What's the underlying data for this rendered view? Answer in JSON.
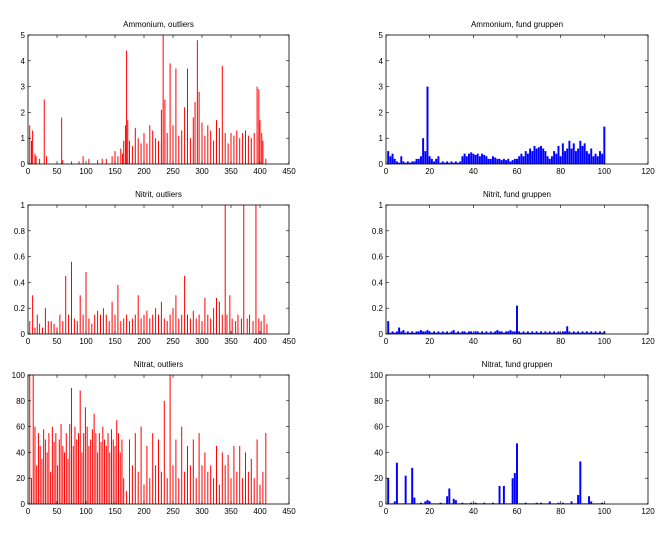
{
  "chart_data": [
    {
      "type": "bar",
      "title": "Ammonium, outliers",
      "xlabel": "",
      "ylabel": "",
      "xlim": [
        0,
        450
      ],
      "ylim": [
        0,
        5
      ],
      "xticks": [
        0,
        50,
        100,
        150,
        200,
        250,
        300,
        350,
        400,
        450
      ],
      "yticks": [
        0,
        1,
        2,
        3,
        4,
        5
      ],
      "color": "#ff0000",
      "style": "spike",
      "x": [
        3,
        6,
        8,
        12,
        14,
        20,
        28,
        32,
        58,
        60,
        75,
        88,
        95,
        105,
        120,
        128,
        135,
        145,
        150,
        155,
        160,
        163,
        165,
        168,
        170,
        172,
        175,
        180,
        185,
        190,
        195,
        200,
        205,
        210,
        215,
        220,
        225,
        230,
        233,
        236,
        240,
        245,
        250,
        255,
        260,
        265,
        270,
        275,
        280,
        285,
        288,
        292,
        295,
        300,
        305,
        310,
        315,
        320,
        325,
        330,
        335,
        340,
        345,
        350,
        355,
        360,
        365,
        370,
        375,
        380,
        385,
        390,
        395,
        398,
        400,
        403,
        405,
        410
      ],
      "values": [
        1.5,
        0.9,
        1.3,
        0.4,
        0.3,
        0.2,
        2.5,
        0.3,
        1.8,
        0.15,
        0.1,
        0.1,
        0.3,
        0.2,
        0.15,
        0.2,
        0.2,
        0.3,
        0.5,
        0.3,
        0.6,
        0.4,
        0.9,
        1.5,
        4.4,
        1.7,
        0.9,
        0.7,
        1.4,
        1.0,
        0.8,
        1.2,
        0.8,
        1.5,
        1.3,
        1.0,
        0.9,
        2.1,
        5.0,
        2.5,
        1.2,
        3.9,
        1.5,
        3.7,
        1.1,
        1.3,
        2.2,
        3.7,
        1.0,
        1.8,
        2.4,
        4.8,
        2.8,
        1.6,
        1.1,
        1.5,
        1.3,
        0.9,
        1.7,
        1.4,
        3.8,
        1.2,
        0.8,
        1.2,
        1.1,
        1.3,
        1.0,
        1.2,
        1.3,
        1.1,
        1.0,
        1.2,
        3.0,
        2.9,
        1.7,
        1.2,
        0.9,
        0.2
      ]
    },
    {
      "type": "bar",
      "title": "Ammonium, fund gruppen",
      "xlabel": "",
      "ylabel": "",
      "xlim": [
        0,
        120
      ],
      "ylim": [
        0,
        5
      ],
      "xticks": [
        0,
        20,
        40,
        60,
        80,
        100,
        120
      ],
      "yticks": [
        0,
        1,
        2,
        3,
        4,
        5
      ],
      "color": "#0000ff",
      "style": "bar",
      "x": [
        1,
        2,
        3,
        4,
        5,
        6,
        7,
        8,
        9,
        10,
        11,
        12,
        13,
        14,
        15,
        16,
        17,
        18,
        19,
        20,
        21,
        22,
        23,
        24,
        25,
        26,
        27,
        28,
        29,
        30,
        31,
        32,
        33,
        34,
        35,
        36,
        37,
        38,
        39,
        40,
        41,
        42,
        43,
        44,
        45,
        46,
        47,
        48,
        49,
        50,
        51,
        52,
        53,
        54,
        55,
        56,
        57,
        58,
        59,
        60,
        61,
        62,
        63,
        64,
        65,
        66,
        67,
        68,
        69,
        70,
        71,
        72,
        73,
        74,
        75,
        76,
        77,
        78,
        79,
        80,
        81,
        82,
        83,
        84,
        85,
        86,
        87,
        88,
        89,
        90,
        91,
        92,
        93,
        94,
        95,
        96,
        97,
        98,
        99,
        100
      ],
      "values": [
        0.5,
        0.3,
        0.4,
        0.2,
        0.1,
        0.05,
        0.3,
        0.1,
        0.05,
        0.1,
        0.05,
        0.1,
        0.1,
        0.2,
        0.2,
        0.3,
        1.0,
        0.5,
        3.0,
        0.3,
        0.2,
        0.1,
        0.2,
        0.3,
        0.05,
        0.1,
        0.05,
        0.1,
        0.05,
        0.1,
        0.05,
        0.1,
        0.05,
        0.1,
        0.3,
        0.4,
        0.3,
        0.4,
        0.45,
        0.4,
        0.35,
        0.4,
        0.3,
        0.4,
        0.35,
        0.3,
        0.2,
        0.2,
        0.3,
        0.25,
        0.2,
        0.2,
        0.15,
        0.2,
        0.15,
        0.2,
        0.1,
        0.15,
        0.2,
        0.2,
        0.3,
        0.4,
        0.3,
        0.5,
        0.4,
        0.6,
        0.5,
        0.7,
        0.6,
        0.65,
        0.7,
        0.6,
        0.5,
        0.3,
        0.2,
        0.3,
        0.5,
        0.4,
        0.7,
        0.3,
        0.8,
        0.5,
        0.6,
        0.9,
        0.6,
        0.8,
        0.5,
        0.6,
        0.9,
        0.7,
        0.8,
        0.5,
        0.4,
        0.6,
        0.3,
        0.4,
        0.3,
        0.5,
        0.4,
        1.45
      ]
    },
    {
      "type": "bar",
      "title": "Nitrit, outliers",
      "xlabel": "",
      "ylabel": "",
      "xlim": [
        0,
        450
      ],
      "ylim": [
        0,
        1
      ],
      "xticks": [
        0,
        50,
        100,
        150,
        200,
        250,
        300,
        350,
        400,
        450
      ],
      "yticks": [
        0,
        0.2,
        0.4,
        0.6,
        0.8,
        1
      ],
      "color": "#ff0000",
      "style": "spike",
      "x": [
        3,
        8,
        12,
        16,
        20,
        25,
        30,
        35,
        40,
        45,
        50,
        55,
        60,
        65,
        70,
        75,
        80,
        85,
        90,
        95,
        100,
        105,
        110,
        115,
        120,
        125,
        130,
        135,
        140,
        145,
        150,
        155,
        160,
        165,
        170,
        175,
        180,
        185,
        190,
        195,
        200,
        205,
        210,
        215,
        220,
        225,
        230,
        235,
        240,
        245,
        250,
        255,
        260,
        265,
        270,
        275,
        280,
        285,
        290,
        295,
        300,
        305,
        310,
        315,
        320,
        325,
        330,
        335,
        340,
        343,
        348,
        352,
        358,
        362,
        368,
        372,
        378,
        382,
        388,
        393,
        398,
        402,
        407,
        412
      ],
      "values": [
        0.1,
        0.3,
        0.05,
        0.15,
        0.08,
        0.05,
        0.2,
        0.1,
        0.1,
        0.08,
        0.05,
        0.15,
        0.1,
        0.45,
        0.15,
        0.56,
        0.12,
        0.1,
        0.3,
        0.15,
        0.48,
        0.12,
        0.08,
        0.15,
        0.18,
        0.15,
        0.2,
        0.15,
        0.1,
        0.25,
        0.15,
        0.38,
        0.1,
        0.12,
        0.15,
        0.1,
        0.12,
        0.15,
        0.3,
        0.12,
        0.15,
        0.18,
        0.12,
        0.15,
        0.2,
        0.15,
        0.25,
        0.12,
        0.1,
        0.15,
        0.2,
        0.3,
        0.12,
        0.15,
        0.45,
        0.15,
        0.12,
        0.18,
        0.12,
        0.15,
        0.1,
        0.28,
        0.15,
        0.12,
        0.2,
        0.28,
        0.25,
        0.15,
        1.0,
        0.15,
        0.3,
        0.12,
        0.1,
        0.15,
        0.12,
        1.0,
        0.12,
        0.15,
        0.1,
        1.0,
        0.12,
        0.1,
        0.15,
        0.08
      ]
    },
    {
      "type": "bar",
      "title": "Nitrit, fund gruppen",
      "xlabel": "",
      "ylabel": "",
      "xlim": [
        0,
        120
      ],
      "ylim": [
        0,
        1
      ],
      "xticks": [
        0,
        20,
        40,
        60,
        80,
        100,
        120
      ],
      "yticks": [
        0,
        0.2,
        0.4,
        0.6,
        0.8,
        1
      ],
      "color": "#0000ff",
      "style": "bar",
      "x": [
        1,
        2,
        3,
        4,
        5,
        6,
        7,
        8,
        9,
        10,
        11,
        12,
        13,
        14,
        15,
        16,
        17,
        18,
        19,
        20,
        21,
        22,
        23,
        24,
        25,
        26,
        27,
        28,
        29,
        30,
        31,
        32,
        33,
        34,
        35,
        36,
        37,
        38,
        39,
        40,
        41,
        42,
        43,
        44,
        45,
        46,
        47,
        48,
        49,
        50,
        51,
        52,
        53,
        54,
        55,
        56,
        57,
        58,
        59,
        60,
        61,
        62,
        63,
        64,
        65,
        66,
        67,
        68,
        69,
        70,
        71,
        72,
        73,
        74,
        75,
        76,
        77,
        78,
        79,
        80,
        81,
        82,
        83,
        84,
        85,
        86,
        87,
        88,
        89,
        90,
        91,
        92,
        93,
        94,
        95,
        96,
        97,
        98,
        99,
        100
      ],
      "values": [
        0.1,
        0.01,
        0.02,
        0.01,
        0.02,
        0.05,
        0.02,
        0.03,
        0.01,
        0.02,
        0.01,
        0.02,
        0.01,
        0.02,
        0.02,
        0.03,
        0.02,
        0.02,
        0.03,
        0.02,
        0.01,
        0.02,
        0.01,
        0.02,
        0.01,
        0.02,
        0.01,
        0.02,
        0.01,
        0.02,
        0.03,
        0.01,
        0.02,
        0.01,
        0.02,
        0.02,
        0.01,
        0.02,
        0.02,
        0.01,
        0.02,
        0.02,
        0.01,
        0.02,
        0.01,
        0.02,
        0.01,
        0.02,
        0.01,
        0.02,
        0.03,
        0.02,
        0.02,
        0.01,
        0.02,
        0.02,
        0.03,
        0.02,
        0.02,
        0.22,
        0.02,
        0.01,
        0.02,
        0.01,
        0.02,
        0.01,
        0.02,
        0.01,
        0.02,
        0.01,
        0.02,
        0.01,
        0.02,
        0.01,
        0.02,
        0.01,
        0.02,
        0.01,
        0.02,
        0.01,
        0.02,
        0.02,
        0.06,
        0.02,
        0.01,
        0.02,
        0.01,
        0.02,
        0.01,
        0.02,
        0.01,
        0.02,
        0.01,
        0.02,
        0.01,
        0.02,
        0.01,
        0.02,
        0.01,
        0.02
      ]
    },
    {
      "type": "bar",
      "title": "Nitrat, outliers",
      "xlabel": "",
      "ylabel": "",
      "xlim": [
        0,
        450
      ],
      "ylim": [
        0,
        100
      ],
      "xticks": [
        0,
        50,
        100,
        150,
        200,
        250,
        300,
        350,
        400,
        450
      ],
      "yticks": [
        0,
        20,
        40,
        60,
        80,
        100
      ],
      "color": "#ff0000",
      "style": "spike",
      "x": [
        3,
        6,
        9,
        12,
        15,
        18,
        21,
        24,
        27,
        30,
        33,
        36,
        39,
        42,
        45,
        48,
        51,
        54,
        57,
        60,
        63,
        66,
        69,
        72,
        75,
        78,
        81,
        84,
        87,
        90,
        93,
        96,
        99,
        102,
        105,
        108,
        111,
        114,
        117,
        120,
        123,
        126,
        129,
        132,
        135,
        138,
        141,
        144,
        147,
        150,
        153,
        156,
        159,
        162,
        165,
        170,
        175,
        180,
        185,
        190,
        195,
        200,
        205,
        210,
        215,
        220,
        225,
        230,
        235,
        240,
        245,
        250,
        255,
        260,
        265,
        270,
        275,
        280,
        285,
        290,
        295,
        300,
        305,
        310,
        315,
        320,
        325,
        330,
        335,
        340,
        345,
        350,
        355,
        360,
        365,
        370,
        375,
        380,
        385,
        390,
        395,
        400,
        405,
        410
      ],
      "values": [
        100,
        20,
        100,
        60,
        30,
        55,
        45,
        35,
        58,
        50,
        40,
        55,
        25,
        60,
        48,
        55,
        30,
        50,
        62,
        45,
        40,
        55,
        35,
        62,
        90,
        45,
        60,
        50,
        55,
        88,
        40,
        55,
        75,
        60,
        45,
        50,
        58,
        70,
        55,
        40,
        55,
        48,
        60,
        50,
        45,
        55,
        40,
        58,
        50,
        45,
        65,
        55,
        40,
        50,
        20,
        10,
        50,
        30,
        55,
        25,
        60,
        15,
        45,
        20,
        55,
        30,
        50,
        25,
        80,
        20,
        100,
        30,
        50,
        20,
        60,
        25,
        45,
        30,
        50,
        20,
        55,
        30,
        40,
        25,
        30,
        20,
        45,
        15,
        40,
        30,
        38,
        20,
        45,
        25,
        45,
        20,
        40,
        25,
        35,
        20,
        50,
        15,
        25,
        55
      ]
    },
    {
      "type": "bar",
      "title": "Nitrat, fund gruppen",
      "xlabel": "",
      "ylabel": "",
      "xlim": [
        0,
        120
      ],
      "ylim": [
        0,
        100
      ],
      "xticks": [
        0,
        20,
        40,
        60,
        80,
        100,
        120
      ],
      "yticks": [
        0,
        20,
        40,
        60,
        80,
        100
      ],
      "color": "#0000ff",
      "style": "bar",
      "x": [
        1,
        2,
        3,
        4,
        5,
        6,
        7,
        8,
        9,
        10,
        11,
        12,
        13,
        14,
        15,
        16,
        17,
        18,
        19,
        20,
        21,
        22,
        23,
        24,
        25,
        26,
        27,
        28,
        29,
        30,
        31,
        32,
        33,
        34,
        35,
        36,
        37,
        38,
        39,
        40,
        41,
        42,
        43,
        44,
        45,
        46,
        47,
        48,
        49,
        50,
        51,
        52,
        53,
        54,
        55,
        56,
        57,
        58,
        59,
        60,
        61,
        62,
        63,
        64,
        65,
        66,
        67,
        68,
        69,
        70,
        71,
        72,
        73,
        74,
        75,
        76,
        77,
        78,
        79,
        80,
        81,
        82,
        83,
        84,
        85,
        86,
        87,
        88,
        89,
        90,
        91,
        92,
        93,
        94,
        95,
        96,
        97,
        98,
        99,
        100
      ],
      "values": [
        20,
        0.5,
        0.5,
        2,
        32,
        0.5,
        0.5,
        0.5,
        22,
        0.5,
        0.5,
        28,
        5,
        0.5,
        0.5,
        1,
        0.5,
        2,
        3,
        2,
        0.5,
        0.5,
        0.5,
        0.5,
        1,
        0.5,
        0.5,
        6,
        12,
        0.5,
        4,
        3,
        0.5,
        0.5,
        1,
        0.5,
        0.5,
        0.5,
        1,
        0.5,
        1,
        0.5,
        0.5,
        0.5,
        1,
        0.5,
        0.5,
        0.5,
        1,
        0.5,
        0.5,
        14,
        0.5,
        14,
        0.5,
        0.5,
        0.5,
        20,
        24,
        47,
        0.5,
        0.5,
        0.5,
        1,
        0.5,
        0.5,
        0.5,
        0.5,
        1,
        0.5,
        1,
        0.5,
        0.5,
        0.5,
        2,
        0.5,
        0.5,
        0.5,
        1,
        0.5,
        1,
        0.5,
        0.5,
        0.5,
        2,
        0.5,
        0.5,
        7,
        33,
        0.5,
        0.5,
        0.5,
        6,
        2,
        0.5,
        0.5,
        0.5,
        0.5,
        1,
        0.5
      ]
    }
  ]
}
